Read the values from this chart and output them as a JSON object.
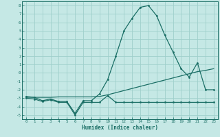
{
  "xlabel": "Humidex (Indice chaleur)",
  "bg_color": "#c5e8e5",
  "grid_color": "#9fcfcb",
  "line_color": "#1a6e65",
  "xlim": [
    -0.5,
    23.5
  ],
  "ylim": [
    -5.5,
    8.5
  ],
  "xticks": [
    0,
    1,
    2,
    3,
    4,
    5,
    6,
    7,
    8,
    9,
    10,
    11,
    12,
    13,
    14,
    15,
    16,
    17,
    18,
    19,
    20,
    21,
    22,
    23
  ],
  "yticks": [
    -5,
    -4,
    -3,
    -2,
    -1,
    0,
    1,
    2,
    3,
    4,
    5,
    6,
    7,
    8
  ],
  "line1_x": [
    0,
    1,
    2,
    3,
    4,
    5,
    6,
    7,
    8,
    9,
    10,
    11,
    12,
    13,
    14,
    15,
    16,
    17,
    18,
    19,
    20,
    21,
    22,
    23
  ],
  "line1_y": [
    -3.0,
    -3.1,
    -3.4,
    -3.2,
    -3.5,
    -3.5,
    -5.0,
    -3.5,
    -3.5,
    -3.5,
    -2.7,
    -3.5,
    -3.5,
    -3.5,
    -3.5,
    -3.5,
    -3.5,
    -3.5,
    -3.5,
    -3.5,
    -3.5,
    -3.5,
    -3.5,
    -3.5
  ],
  "line2_x": [
    0,
    1,
    2,
    3,
    4,
    5,
    6,
    7,
    8,
    9,
    10,
    11,
    12,
    13,
    14,
    15,
    16,
    17,
    18,
    19,
    20,
    21,
    22,
    23
  ],
  "line2_y": [
    -2.9,
    -2.9,
    -2.9,
    -2.9,
    -2.85,
    -2.85,
    -2.85,
    -2.85,
    -2.85,
    -2.8,
    -2.6,
    -2.35,
    -2.1,
    -1.85,
    -1.6,
    -1.35,
    -1.1,
    -0.85,
    -0.6,
    -0.35,
    -0.1,
    0.15,
    0.3,
    0.5
  ],
  "line3_x": [
    0,
    1,
    2,
    3,
    4,
    5,
    6,
    7,
    8,
    9,
    10,
    11,
    12,
    13,
    14,
    15,
    16,
    17,
    18,
    19,
    20,
    21,
    22,
    23
  ],
  "line3_y": [
    -2.8,
    -2.9,
    -3.3,
    -3.1,
    -3.4,
    -3.4,
    -4.8,
    -3.3,
    -3.3,
    -2.5,
    -0.8,
    2.0,
    5.0,
    6.5,
    7.8,
    8.0,
    6.8,
    4.5,
    2.5,
    0.5,
    -0.5,
    1.2,
    -2.0,
    -2.0
  ]
}
